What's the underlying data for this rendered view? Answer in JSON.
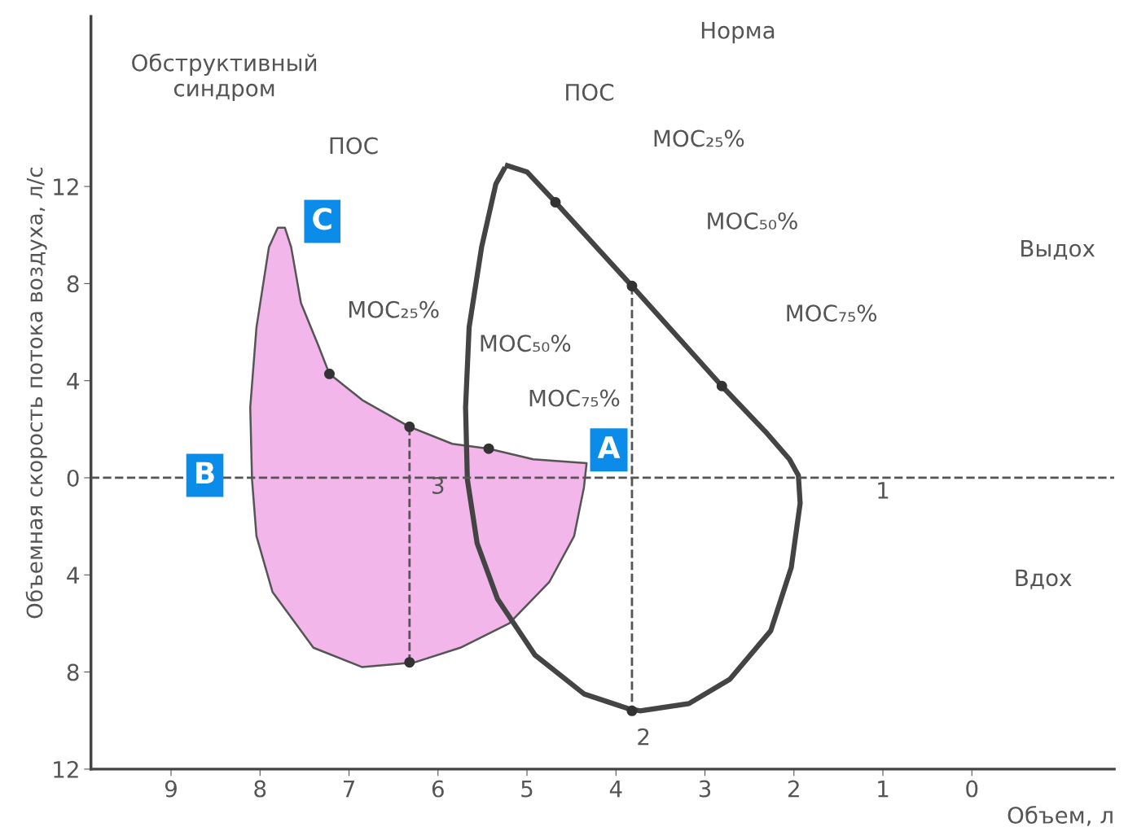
{
  "chart_data": {
    "type": "line",
    "xlabel": "Объем, л",
    "ylabel": "Объемная скорость потока воздуха, л/с",
    "xlim": [
      9.9,
      -1.6
    ],
    "ylim": [
      -12,
      19
    ],
    "xticks": [
      9,
      8,
      7,
      6,
      5,
      4,
      3,
      2,
      1,
      0
    ],
    "yticks": [
      12,
      8,
      4,
      0,
      {
        "value": -4,
        "label": "4"
      },
      {
        "value": -8,
        "label": "8"
      },
      {
        "value": -12,
        "label": "12"
      }
    ],
    "grid": false,
    "legend": false,
    "ref_lines": [
      {
        "axis": "y",
        "value": 0,
        "line_style": "dashed",
        "color": "#555555"
      }
    ],
    "series": [
      {
        "type": "area",
        "color": "#f2b6ea",
        "x": [
          8.09,
          8.11,
          8.04,
          7.9,
          7.8,
          7.72,
          7.65,
          7.54,
          7.35,
          7.22,
          6.85,
          6.32,
          5.84,
          5.43,
          4.93,
          4.33,
          4.36,
          4.47,
          4.75,
          5.2,
          5.75,
          6.26,
          6.85,
          7.4,
          7.86,
          8.04,
          8.09
        ],
        "values": [
          -0.07,
          2.9,
          6.2,
          9.5,
          10.3,
          10.3,
          9.5,
          7.2,
          5.5,
          4.28,
          3.2,
          2.1,
          1.4,
          1.2,
          0.76,
          0.6,
          -0.4,
          -2.4,
          -4.3,
          -6.0,
          -7.0,
          -7.6,
          -7.8,
          -7.0,
          -4.7,
          -2.4,
          -0.07
        ]
      },
      {
        "color": "#444444",
        "x": [
          5.22,
          5.0,
          4.68,
          3.82,
          2.81,
          2.32,
          2.05,
          1.95,
          1.93,
          2.03,
          2.26,
          2.72,
          3.18,
          3.73,
          3.87,
          4.36,
          4.91,
          5.33,
          5.56,
          5.67,
          5.69,
          5.65,
          5.51,
          5.35,
          5.26
        ],
        "values": [
          12.86,
          12.6,
          11.35,
          7.9,
          3.78,
          1.9,
          0.76,
          0.1,
          -1.05,
          -3.7,
          -6.3,
          -8.3,
          -9.3,
          -9.6,
          -9.5,
          -8.9,
          -7.3,
          -5.0,
          -2.7,
          -0.07,
          2.9,
          6.2,
          9.5,
          12.1,
          12.7
        ]
      },
      {
        "color": "#555555",
        "line_style": "dashed",
        "x": [
          3.82,
          3.82
        ],
        "values": [
          7.9,
          -9.6
        ]
      },
      {
        "color": "#555555",
        "line_style": "dashed",
        "x": [
          6.32,
          6.32
        ],
        "values": [
          2.1,
          -7.6
        ]
      },
      {
        "type": "scatter",
        "color": "#333333",
        "x": [
          4.68,
          3.82,
          2.81,
          3.82
        ],
        "values": [
          11.35,
          7.9,
          3.78,
          -9.6
        ]
      },
      {
        "type": "scatter",
        "color": "#333333",
        "x": [
          7.22,
          6.32,
          5.43,
          6.32
        ],
        "values": [
          4.28,
          2.1,
          1.2,
          -7.6
        ]
      }
    ],
    "annotations": [
      "Норма",
      "Обструктивный\nсиндром",
      "ПОС",
      "ПОС",
      "МОС₂₅%",
      "МОС₅₀%",
      "МОС₇₅%",
      "МОС₂₅%",
      "МОС₅₀%",
      "МОС₇₅%",
      "Выдох",
      "Вдох",
      "1",
      "2",
      "3",
      "A",
      "B",
      "C"
    ]
  }
}
